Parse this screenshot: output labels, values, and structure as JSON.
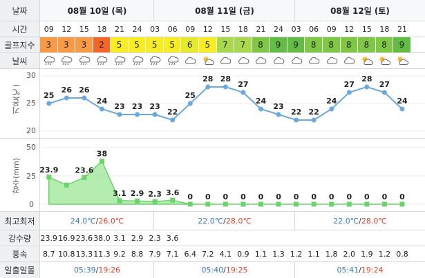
{
  "labels": {
    "date": "날짜",
    "time": "시간",
    "golf": "골프지수",
    "weather": "날씨",
    "temp_axis": "기온(℃)",
    "rain_axis": "강수(mm)",
    "minmax": "최고최저",
    "precip": "강수량",
    "wind": "풍속",
    "sun": "일출일몰"
  },
  "dates": [
    "08월 10일 (목)",
    "08월 11일 (금)",
    "08월 12일 (토)"
  ],
  "hours": [
    "09",
    "12",
    "15",
    "18",
    "21",
    "24",
    "03",
    "06",
    "09",
    "12",
    "15",
    "18",
    "21",
    "24",
    "03",
    "06",
    "09",
    "12",
    "15",
    "18",
    "21"
  ],
  "golf_index": [
    "3",
    "3",
    "3",
    "2",
    "5",
    "5",
    "5",
    "5",
    "6",
    "5",
    "7",
    "7",
    "8",
    "9",
    "9",
    "8",
    "8",
    "8",
    "8",
    "8",
    "9"
  ],
  "weather_icons": [
    "rain-cloud-icon",
    "rain-cloud-icon",
    "rain-cloud-icon",
    "rain-cloud-icon",
    "rain-cloud-icon",
    "rain-cloud-icon",
    "rain-cloud-icon",
    "rain-cloud-icon",
    "cloud-icon",
    "partly-sunny-icon",
    "cloud-icon",
    "cloud-icon",
    "cloud-icon",
    "cloud-icon",
    "cloud-icon",
    "cloud-icon",
    "cloud-icon",
    "cloud-icon",
    "partly-sunny-icon",
    "partly-sunny-icon",
    "partly-sunny-icon"
  ],
  "temp_chart": {
    "type": "line",
    "values": [
      25,
      26,
      26,
      24,
      23,
      23,
      23,
      22,
      25,
      28,
      28,
      27,
      24,
      23,
      22,
      22,
      24,
      27,
      28,
      27,
      24
    ],
    "labels": [
      "25",
      "26",
      "26",
      "24",
      "23",
      "23",
      "23",
      "22",
      "25",
      "28",
      "28",
      "27",
      "24",
      "23",
      "22",
      "22",
      "24",
      "27",
      "28",
      "27",
      "24"
    ],
    "ylim": [
      20,
      30
    ],
    "ticks": [
      "30",
      "25",
      "20"
    ]
  },
  "rain_chart": {
    "type": "area",
    "values": [
      23.9,
      16.9,
      23.6,
      38.0,
      3.1,
      2.9,
      2.3,
      3.6,
      0,
      0,
      0,
      0,
      0,
      0,
      0,
      0,
      0,
      0,
      0,
      0,
      0
    ],
    "labels": [
      "23.9",
      "",
      "23.6",
      "38",
      "3.1",
      "2.9",
      "2.3",
      "3.6",
      "0",
      "0",
      "0",
      "0",
      "0",
      "0",
      "0",
      "0",
      "0",
      "0",
      "0",
      "0",
      "0"
    ],
    "ylim": [
      0,
      50
    ],
    "ticks": [
      "50",
      "25",
      "0"
    ]
  },
  "minmax": [
    {
      "min": "24.0℃",
      "sep": "/",
      "max": "26.0℃"
    },
    {
      "min": "22.0℃",
      "sep": "/",
      "max": "28.0℃"
    },
    {
      "min": "22.0℃",
      "sep": "/",
      "max": "28.0℃"
    }
  ],
  "precip": [
    "23.9",
    "16.9",
    "23.6",
    "38.0",
    "3.1",
    "2.9",
    "2.3",
    "3.6"
  ],
  "wind": [
    "8.7",
    "10.8",
    "13.3",
    "11.3",
    "9.2",
    "8.8",
    "7.9",
    "7.1",
    "6.4",
    "7.2",
    "4.1",
    "0.9",
    "1.1",
    "1.3",
    "1.2",
    "1.1",
    "1.8",
    "2.0",
    "1.9",
    "1.2",
    "0.8"
  ],
  "sun": [
    {
      "rise": "05:39",
      "sep": "/",
      "set": "19:26"
    },
    {
      "rise": "05:40",
      "sep": "/",
      "set": "19:25"
    },
    {
      "rise": "05:41",
      "sep": "/",
      "set": "19:24"
    }
  ],
  "colors": {
    "golf": {
      "2": "#f2662b",
      "3": "#f99a47",
      "5": "#f8ec22",
      "6": "#e5ea2a",
      "7": "#a8d84b",
      "8": "#7fc846",
      "9": "#63bd45"
    },
    "temp_line": "#6aa9df",
    "rain": "#6ad46a"
  }
}
